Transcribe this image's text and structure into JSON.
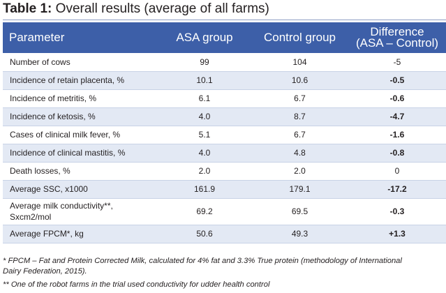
{
  "title": {
    "label": "Table 1:",
    "text": " Overall results (average of all farms)"
  },
  "columns": {
    "parameter": "Parameter",
    "asa": "ASA group",
    "control": "Control group",
    "difference_line1": "Difference",
    "difference_line2": "(ASA – Control)"
  },
  "rows": [
    {
      "parameter": "Number of cows",
      "asa": "99",
      "control": "104",
      "difference": "-5"
    },
    {
      "parameter": "Incidence of retain placenta, %",
      "asa": "10.1",
      "control": "10.6",
      "difference": "-0.5"
    },
    {
      "parameter": "Incidence of metritis, %",
      "asa": "6.1",
      "control": "6.7",
      "difference": "-0.6"
    },
    {
      "parameter": "Incidence of ketosis, %",
      "asa": "4.0",
      "control": "8.7",
      "difference": "-4.7"
    },
    {
      "parameter": "Cases of clinical milk fever, %",
      "asa": "5.1",
      "control": "6.7",
      "difference": "-1.6"
    },
    {
      "parameter": "Incidence of clinical mastitis, %",
      "asa": "4.0",
      "control": "4.8",
      "difference": "-0.8"
    },
    {
      "parameter": "Death losses, %",
      "asa": "2.0",
      "control": "2.0",
      "difference": "0"
    },
    {
      "parameter": "Average SSC, x1000",
      "asa": "161.9",
      "control": "179.1",
      "difference": "-17.2"
    },
    {
      "parameter_line1": "Average milk conductivity**,",
      "parameter_line2": "Sxcm2/mol",
      "asa": "69.2",
      "control": "69.5",
      "difference": "-0.3"
    },
    {
      "parameter": "Average FPCM*, kg",
      "asa": "50.6",
      "control": "49.3",
      "difference": "+1.3"
    }
  ],
  "footnotes": {
    "fpcm_line1": "* FPCM – Fat and Protein Corrected Milk, calculated for 4% fat and 3.3% True protein (methodology of International",
    "fpcm_line2": "Dairy Federation, 2015).",
    "conductivity": "** One of the robot farms in the trial used conductivity for udder health control"
  },
  "colors": {
    "header_bg": "#3d5fa8",
    "alt_row_bg": "#e3e9f4",
    "text": "#231f20"
  }
}
